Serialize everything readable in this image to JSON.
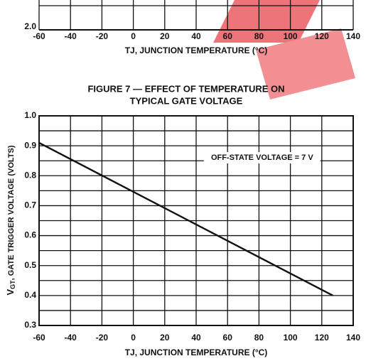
{
  "chart_data": [
    {
      "type": "line",
      "xlabel": "TJ, JUNCTION TEMPERATURE (°C)",
      "xlim": [
        -60,
        140
      ],
      "xticks": [
        -60,
        -40,
        -20,
        0,
        20,
        40,
        60,
        80,
        100,
        120,
        140
      ],
      "yticks": [
        {
          "value": 2,
          "label": "2.0"
        }
      ],
      "grid": true
    },
    {
      "type": "line",
      "title": [
        "FIGURE 7 — EFFECT OF TEMPERATURE ON",
        "TYPICAL GATE VOLTAGE"
      ],
      "ylabel": {
        "symbol": "V",
        "subscript": "GT",
        "text": ", GATE TRIGGER VOLTAGE (VOLTS)"
      },
      "xlabel": "TJ, JUNCTION TEMPERATURE (°C)",
      "annotation": "OFF-STATE VOLTAGE = 7 V",
      "annotation_at": [
        82,
        0.86
      ],
      "xlim": [
        -60,
        140
      ],
      "xticks": [
        -60,
        -40,
        -20,
        0,
        20,
        40,
        60,
        80,
        100,
        120,
        140
      ],
      "ylim": [
        0.3,
        1.0
      ],
      "yticks": [
        {
          "value": 0.3,
          "label": "0.3"
        },
        0.4,
        0.5,
        0.6,
        0.7,
        0.8,
        0.9,
        {
          "value": 1,
          "label": "1.0"
        }
      ],
      "yminor": [
        0.35,
        0.45,
        0.55,
        0.65,
        0.75,
        0.85,
        0.95
      ],
      "grid": true,
      "series": [
        {
          "color": "#111111",
          "x": [
            -60,
            127
          ],
          "values": [
            0.91,
            0.4
          ]
        }
      ]
    }
  ]
}
